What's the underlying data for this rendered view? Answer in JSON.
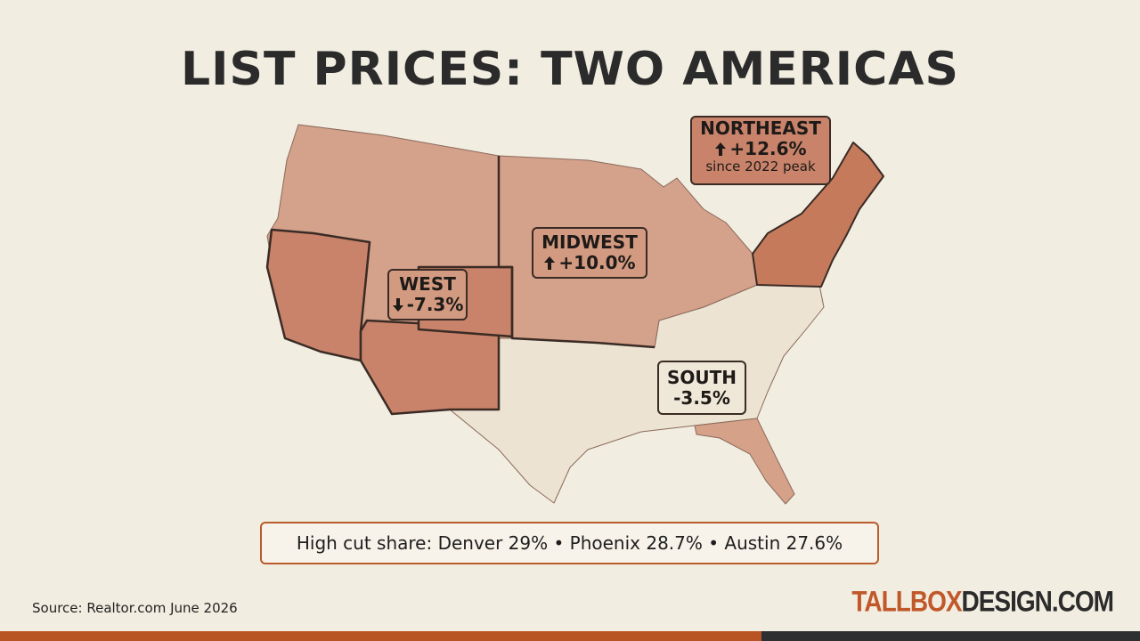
{
  "title": "LIST PRICES: TWO AMERICAS",
  "regions": [
    {
      "name": "NORTHEAST",
      "change": "+12.6%",
      "note": "since 2022 peak"
    },
    {
      "name": "MIDWEST",
      "change": "+10.0%"
    },
    {
      "name": "WEST",
      "change": "-7.3%"
    },
    {
      "name": "SOUTH",
      "change": "-3.5%"
    }
  ],
  "callout": "High cut share: Denver 29% • Phoenix 28.7% • Austin 27.6%",
  "source": "Source: Realtor.com June 2026",
  "brand": {
    "accent": "TALLBOX",
    "rest": "DESIGN.COM"
  }
}
